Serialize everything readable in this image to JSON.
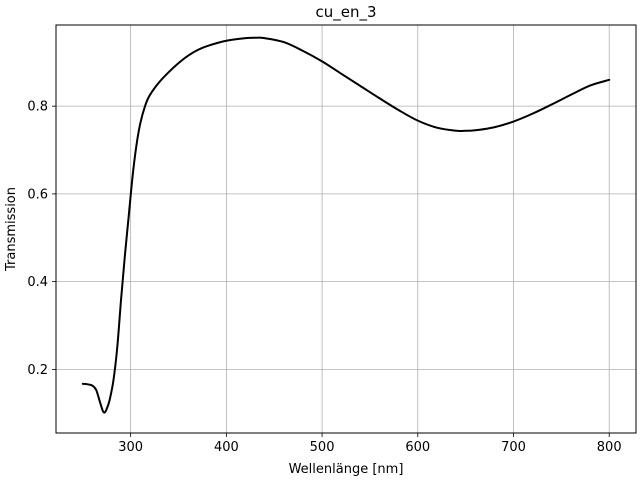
{
  "chart_data": {
    "type": "line",
    "title": "cu_en_3",
    "xlabel": "Wellenlänge [nm]",
    "ylabel": "Transmission",
    "xlim": [
      222,
      828
    ],
    "ylim": [
      0.055,
      0.985
    ],
    "xticks": [
      300,
      400,
      500,
      600,
      700,
      800
    ],
    "xtick_labels": [
      "300",
      "400",
      "500",
      "600",
      "700",
      "800"
    ],
    "yticks": [
      0.2,
      0.4,
      0.6,
      0.8
    ],
    "ytick_labels": [
      "0.2",
      "0.4",
      "0.6",
      "0.8"
    ],
    "grid": true,
    "series": [
      {
        "color": "#000000",
        "x": [
          250,
          255,
          260,
          264,
          268,
          271,
          273,
          275,
          278,
          282,
          286,
          290,
          294,
          298,
          302,
          306,
          310,
          315,
          320,
          330,
          340,
          350,
          360,
          370,
          380,
          400,
          420,
          430,
          440,
          460,
          480,
          500,
          520,
          540,
          560,
          580,
          600,
          620,
          640,
          650,
          660,
          680,
          700,
          720,
          740,
          760,
          780,
          800
        ],
        "y": [
          0.167,
          0.166,
          0.163,
          0.153,
          0.125,
          0.105,
          0.102,
          0.11,
          0.13,
          0.175,
          0.25,
          0.36,
          0.46,
          0.55,
          0.64,
          0.71,
          0.76,
          0.8,
          0.825,
          0.855,
          0.878,
          0.898,
          0.915,
          0.928,
          0.937,
          0.949,
          0.955,
          0.956,
          0.955,
          0.946,
          0.926,
          0.902,
          0.874,
          0.846,
          0.818,
          0.791,
          0.767,
          0.751,
          0.744,
          0.744,
          0.745,
          0.752,
          0.765,
          0.783,
          0.804,
          0.826,
          0.847,
          0.86
        ]
      }
    ]
  }
}
